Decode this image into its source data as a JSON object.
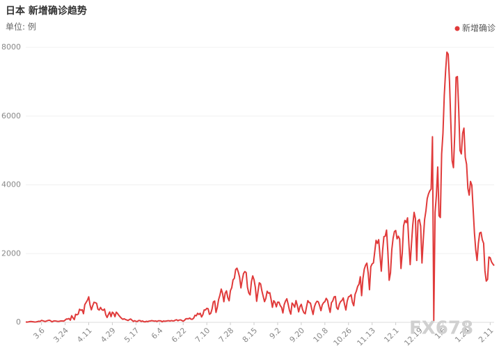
{
  "chart_data": {
    "type": "line",
    "title": "日本 新增确诊趋势",
    "subtitle": "单位: 例",
    "watermark": "FX678",
    "grid": true,
    "legend": "top-right",
    "ylim": [
      0,
      8000
    ],
    "yticks": [
      0,
      2000,
      4000,
      6000,
      8000
    ],
    "categories": [
      null,
      null,
      null,
      null,
      null,
      null,
      null,
      null,
      null,
      null,
      null,
      null,
      "3.6",
      null,
      null,
      null,
      null,
      null,
      null,
      null,
      null,
      null,
      null,
      null,
      null,
      null,
      null,
      null,
      null,
      null,
      "3.24",
      null,
      null,
      null,
      null,
      null,
      null,
      null,
      null,
      null,
      null,
      null,
      null,
      null,
      null,
      null,
      null,
      null,
      "4.11",
      null,
      null,
      null,
      null,
      null,
      null,
      null,
      null,
      null,
      null,
      null,
      null,
      null,
      null,
      null,
      null,
      null,
      "4.29",
      null,
      null,
      null,
      null,
      null,
      null,
      null,
      null,
      null,
      null,
      null,
      null,
      null,
      null,
      null,
      null,
      null,
      "5.17",
      null,
      null,
      null,
      null,
      null,
      null,
      null,
      null,
      null,
      null,
      null,
      null,
      null,
      null,
      null,
      null,
      null,
      "6.4",
      null,
      null,
      null,
      null,
      null,
      null,
      null,
      null,
      null,
      null,
      null,
      null,
      null,
      null,
      null,
      null,
      null,
      "6.22",
      null,
      null,
      null,
      null,
      null,
      null,
      null,
      null,
      null,
      null,
      null,
      null,
      null,
      null,
      null,
      null,
      null,
      "7.10",
      null,
      null,
      null,
      null,
      null,
      null,
      null,
      null,
      null,
      null,
      null,
      null,
      null,
      null,
      null,
      null,
      null,
      "7.28",
      null,
      null,
      null,
      null,
      null,
      null,
      null,
      null,
      null,
      null,
      null,
      null,
      null,
      null,
      null,
      null,
      null,
      "8.15",
      null,
      null,
      null,
      null,
      null,
      null,
      null,
      null,
      null,
      null,
      null,
      null,
      null,
      null,
      null,
      null,
      null,
      "9.2",
      null,
      null,
      null,
      null,
      null,
      null,
      null,
      null,
      null,
      null,
      null,
      null,
      null,
      null,
      null,
      null,
      null,
      "9.20",
      null,
      null,
      null,
      null,
      null,
      null,
      null,
      null,
      null,
      null,
      null,
      null,
      null,
      null,
      null,
      null,
      null,
      "10.8",
      null,
      null,
      null,
      null,
      null,
      null,
      null,
      null,
      null,
      null,
      null,
      null,
      null,
      null,
      null,
      null,
      null,
      "10.26",
      null,
      null,
      null,
      null,
      null,
      null,
      null,
      null,
      null,
      null,
      null,
      null,
      null,
      null,
      null,
      null,
      null,
      "11.13",
      null,
      null,
      null,
      null,
      null,
      null,
      null,
      null,
      null,
      null,
      null,
      null,
      null,
      null,
      null,
      null,
      null,
      "12.1",
      null,
      null,
      null,
      null,
      null,
      null,
      null,
      null,
      null,
      null,
      null,
      null,
      null,
      null,
      null,
      null,
      null,
      "12.19",
      null,
      null,
      null,
      null,
      null,
      null,
      null,
      null,
      null,
      null,
      null,
      null,
      null,
      null,
      null,
      null,
      null,
      "1.6",
      null,
      null,
      null,
      null,
      null,
      null,
      null,
      null,
      null,
      null,
      null,
      null,
      null,
      null,
      null,
      null,
      null,
      "1.24",
      null,
      null,
      null,
      null,
      null,
      null,
      null,
      null,
      null,
      null,
      null,
      null,
      null,
      null,
      null,
      null,
      null,
      "2.11",
      null,
      null,
      null
    ],
    "series": [
      {
        "name": "新增确诊",
        "color": "#e03a3a",
        "values": [
          12,
          8,
          14,
          22,
          25,
          21,
          15,
          9,
          14,
          23,
          33,
          28,
          59,
          47,
          33,
          26,
          41,
          55,
          62,
          45,
          15,
          35,
          44,
          39,
          31,
          27,
          35,
          43,
          40,
          37,
          65,
          98,
          96,
          112,
          63,
          194,
          130,
          80,
          235,
          220,
          240,
          383,
          351,
          368,
          252,
          515,
          579,
          644,
          743,
          506,
          366,
          482,
          584,
          573,
          555,
          384,
          358,
          434,
          370,
          351,
          389,
          222,
          143,
          228,
          301,
          166,
          296,
          260,
          165,
          297,
          256,
          202,
          158,
          118,
          88,
          105,
          83,
          70,
          53,
          82,
          98,
          61,
          29,
          49,
          31,
          24,
          52,
          54,
          26,
          41,
          21,
          14,
          31,
          21,
          38,
          40,
          50,
          44,
          36,
          42,
          26,
          45,
          46,
          43,
          17,
          40,
          32,
          37,
          46,
          49,
          38,
          52,
          43,
          42,
          65,
          76,
          48,
          67,
          72,
          54,
          33,
          60,
          103,
          106,
          103,
          126,
          92,
          90,
          123,
          206,
          191,
          264,
          231,
          265,
          157,
          224,
          363,
          359,
          408,
          396,
          234,
          262,
          388,
          596,
          621,
          288,
          437,
          663,
          792,
          968,
          843,
          600,
          849,
          917,
          720,
          628,
          921,
          1007,
          1237,
          1281,
          1537,
          1575,
          1465,
          1315,
          1002,
          1235,
          1421,
          1477,
          1448,
          1022,
          855,
          799,
          1181,
          1352,
          1240,
          1019,
          612,
          890,
          1151,
          1118,
          913,
          757,
          602,
          698,
          906,
          849,
          863,
          669,
          438,
          630,
          580,
          452,
          588,
          588,
          487,
          436,
          273,
          516,
          620,
          687,
          530,
          348,
          239,
          561,
          515,
          441,
          634,
          490,
          305,
          458,
          525,
          373,
          282,
          250,
          450,
          632,
          580,
          560,
          387,
          230,
          450,
          557,
          615,
          597,
          484,
          340,
          509,
          573,
          603,
          699,
          641,
          447,
          291,
          573,
          624,
          740,
          752,
          427,
          378,
          529,
          607,
          636,
          710,
          520,
          360,
          612,
          742,
          761,
          804,
          582,
          484,
          813,
          910,
          1048,
          1111,
          1328,
          777,
          1272,
          1545,
          1660,
          1723,
          1438,
          950,
          1620,
          1700,
          1729,
          2052,
          2386,
          2296,
          2405,
          1950,
          1489,
          2090,
          2495,
          2505,
          2684,
          2060,
          1224,
          1440,
          2110,
          2447,
          2640,
          2673,
          2430,
          2507,
          2421,
          1567,
          2030,
          2810,
          2966,
          2900,
          3041,
          2310,
          1680,
          2280,
          2840,
          3200,
          3020,
          1800,
          2950,
          2993,
          2800,
          1727,
          2410,
          2990,
          3240,
          3600,
          3740,
          3829,
          3878,
          5400,
          60,
          3200,
          3700,
          4520,
          3100,
          3050,
          4900,
          5500,
          6600,
          7300,
          7860,
          7800,
          7000,
          5800,
          4700,
          4500,
          5500,
          7130,
          7150,
          6200,
          5000,
          4900,
          5500,
          5650,
          4800,
          4600,
          3900,
          3700,
          4100,
          3990,
          3300,
          2600,
          2100,
          1800,
          2300,
          2600,
          2620,
          2400,
          2300,
          1500,
          1200,
          1250,
          1900,
          1880,
          1760,
          1700,
          1650
        ]
      }
    ]
  }
}
